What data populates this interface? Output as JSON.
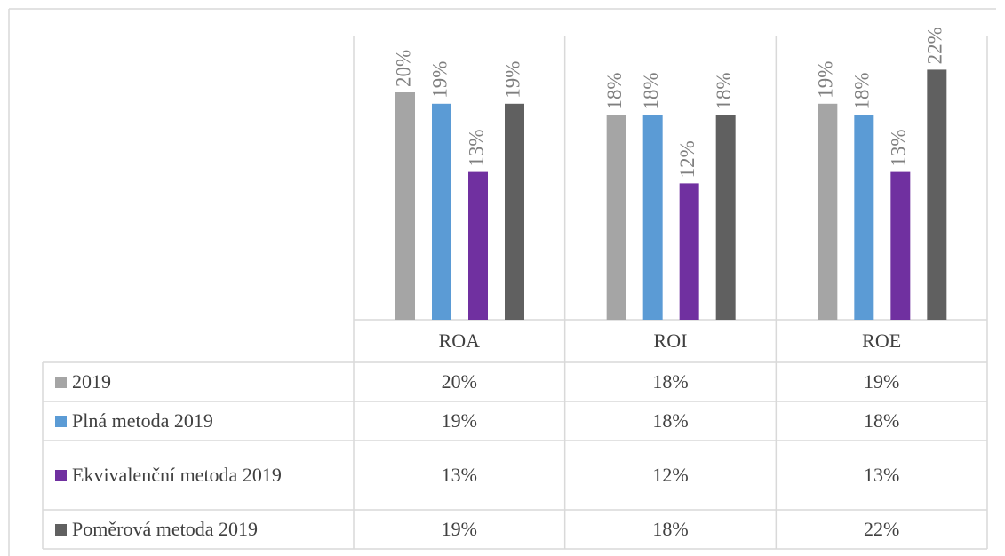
{
  "chart_data": {
    "type": "bar",
    "categories": [
      "ROA",
      "ROI",
      "ROE"
    ],
    "series": [
      {
        "name": "2019",
        "color": "#a5a5a5",
        "values": [
          20,
          18,
          19
        ],
        "value_labels": [
          "20%",
          "18%",
          "19%"
        ]
      },
      {
        "name": "Plná metoda 2019",
        "color": "#5b9bd5",
        "values": [
          19,
          18,
          18
        ],
        "value_labels": [
          "19%",
          "18%",
          "18%"
        ]
      },
      {
        "name": "Ekvivalenční metoda 2019",
        "color": "#7030a0",
        "values": [
          13,
          12,
          13
        ],
        "value_labels": [
          "13%",
          "12%",
          "13%"
        ]
      },
      {
        "name": "Poměrová metoda 2019",
        "color": "#606060",
        "values": [
          19,
          18,
          22
        ],
        "value_labels": [
          "19%",
          "18%",
          "22%"
        ]
      }
    ],
    "ylim": [
      0,
      25
    ]
  }
}
